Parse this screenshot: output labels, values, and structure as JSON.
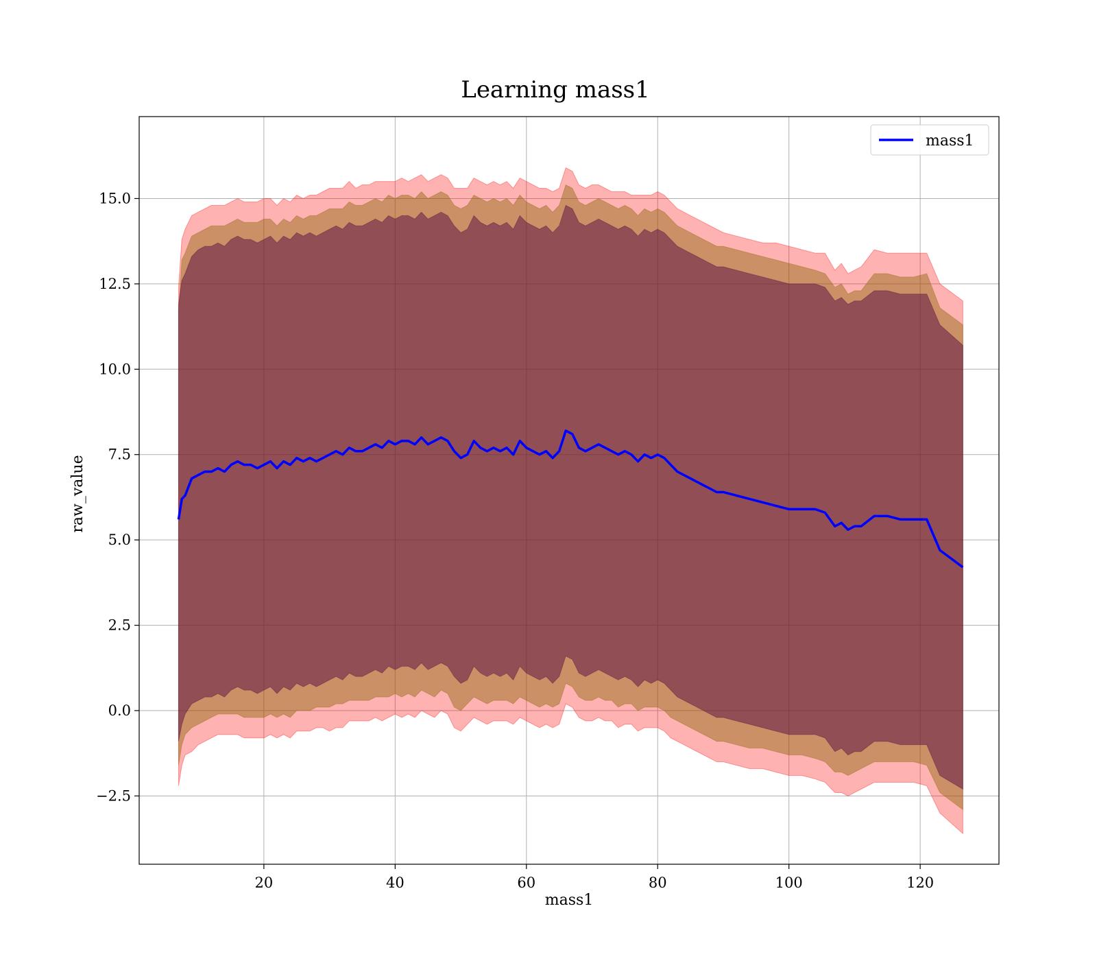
{
  "chart_data": {
    "type": "line",
    "title": "Learning mass1",
    "xlabel": "mass1",
    "ylabel": "raw_value",
    "xlim": [
      1,
      132
    ],
    "ylim": [
      -4.5,
      17.4
    ],
    "grid": true,
    "legend_position": "top-right",
    "xticks": [
      20,
      40,
      60,
      80,
      100,
      120
    ],
    "xtick_labels": [
      "20",
      "40",
      "60",
      "80",
      "100",
      "120"
    ],
    "yticks": [
      -2.5,
      0.0,
      2.5,
      5.0,
      7.5,
      10.0,
      12.5,
      15.0
    ],
    "ytick_labels": [
      "−2.5",
      "0.0",
      "2.5",
      "5.0",
      "7.5",
      "10.0",
      "12.5",
      "15.0"
    ],
    "colors": {
      "line": "#0000ff",
      "outer_band": "#ff0000",
      "middle_band": "#8b6508",
      "inner_band": "#4b0040"
    },
    "series": [
      {
        "name": "mass1",
        "x": [
          7,
          7.5,
          8,
          9,
          10,
          11,
          12,
          13,
          14,
          15,
          16,
          17,
          18,
          19,
          20,
          21,
          22,
          23,
          24,
          25,
          26,
          27,
          28,
          29,
          30,
          31,
          32,
          33,
          34,
          35,
          36,
          37,
          38,
          39,
          40,
          41,
          42,
          43,
          44,
          45,
          46,
          47,
          48,
          49,
          50,
          51,
          52,
          53,
          54,
          55,
          56,
          57,
          58,
          59,
          60,
          61,
          62,
          63,
          64,
          65,
          66,
          67,
          68,
          69,
          70,
          71,
          72,
          73,
          74,
          75,
          76,
          77,
          78,
          79,
          80,
          81,
          82,
          83,
          84,
          85,
          86,
          87,
          88,
          89,
          90,
          92,
          94,
          96,
          98,
          100,
          102,
          104,
          105.5,
          107,
          108,
          109,
          110,
          111,
          113,
          115,
          117,
          119,
          121,
          123,
          126.5
        ],
        "values": [
          5.6,
          6.2,
          6.3,
          6.8,
          6.9,
          7.0,
          7.0,
          7.1,
          7.0,
          7.2,
          7.3,
          7.2,
          7.2,
          7.1,
          7.2,
          7.3,
          7.1,
          7.3,
          7.2,
          7.4,
          7.3,
          7.4,
          7.3,
          7.4,
          7.5,
          7.6,
          7.5,
          7.7,
          7.6,
          7.6,
          7.7,
          7.8,
          7.7,
          7.9,
          7.8,
          7.9,
          7.9,
          7.8,
          8.0,
          7.8,
          7.9,
          8.0,
          7.9,
          7.6,
          7.4,
          7.5,
          7.9,
          7.7,
          7.6,
          7.7,
          7.6,
          7.7,
          7.5,
          7.9,
          7.7,
          7.6,
          7.5,
          7.6,
          7.4,
          7.6,
          8.2,
          8.1,
          7.7,
          7.6,
          7.7,
          7.8,
          7.7,
          7.6,
          7.5,
          7.6,
          7.5,
          7.3,
          7.5,
          7.4,
          7.5,
          7.4,
          7.2,
          7.0,
          6.9,
          6.8,
          6.7,
          6.6,
          6.5,
          6.4,
          6.4,
          6.3,
          6.2,
          6.1,
          6.0,
          5.9,
          5.9,
          5.9,
          5.8,
          5.4,
          5.5,
          5.3,
          5.4,
          5.4,
          5.7,
          5.7,
          5.6,
          5.6,
          5.6,
          4.7,
          4.2
        ]
      }
    ],
    "bands": [
      {
        "layer": "outer",
        "lower": [
          -2.2,
          -1.6,
          -1.3,
          -1.2,
          -1.0,
          -0.9,
          -0.8,
          -0.7,
          -0.7,
          -0.7,
          -0.7,
          -0.8,
          -0.8,
          -0.8,
          -0.8,
          -0.7,
          -0.8,
          -0.7,
          -0.8,
          -0.6,
          -0.6,
          -0.6,
          -0.5,
          -0.5,
          -0.6,
          -0.5,
          -0.5,
          -0.3,
          -0.3,
          -0.3,
          -0.3,
          -0.2,
          -0.3,
          -0.2,
          -0.1,
          -0.2,
          -0.1,
          -0.2,
          0.0,
          -0.1,
          -0.2,
          0.0,
          -0.1,
          -0.5,
          -0.6,
          -0.4,
          -0.2,
          -0.3,
          -0.4,
          -0.3,
          -0.3,
          -0.3,
          -0.4,
          -0.2,
          -0.3,
          -0.4,
          -0.5,
          -0.4,
          -0.5,
          -0.4,
          0.2,
          0.1,
          -0.2,
          -0.3,
          -0.3,
          -0.2,
          -0.3,
          -0.3,
          -0.5,
          -0.4,
          -0.4,
          -0.6,
          -0.5,
          -0.5,
          -0.5,
          -0.6,
          -0.8,
          -0.9,
          -1.0,
          -1.1,
          -1.2,
          -1.3,
          -1.4,
          -1.5,
          -1.5,
          -1.6,
          -1.7,
          -1.7,
          -1.8,
          -1.9,
          -1.9,
          -2.0,
          -2.1,
          -2.4,
          -2.4,
          -2.5,
          -2.4,
          -2.3,
          -2.1,
          -2.1,
          -2.1,
          -2.1,
          -2.2,
          -3.0,
          -3.6
        ],
        "upper": [
          12.4,
          13.8,
          14.1,
          14.5,
          14.6,
          14.7,
          14.8,
          14.8,
          14.8,
          14.9,
          15.0,
          14.9,
          14.9,
          14.9,
          15.0,
          15.0,
          14.8,
          15.0,
          14.9,
          15.1,
          15.0,
          15.1,
          15.1,
          15.2,
          15.3,
          15.3,
          15.3,
          15.5,
          15.3,
          15.4,
          15.4,
          15.5,
          15.5,
          15.5,
          15.5,
          15.6,
          15.5,
          15.6,
          15.7,
          15.5,
          15.6,
          15.7,
          15.6,
          15.3,
          15.3,
          15.3,
          15.6,
          15.5,
          15.4,
          15.5,
          15.4,
          15.5,
          15.3,
          15.6,
          15.5,
          15.4,
          15.3,
          15.3,
          15.2,
          15.3,
          15.9,
          15.8,
          15.4,
          15.3,
          15.4,
          15.4,
          15.3,
          15.2,
          15.2,
          15.2,
          15.1,
          15.1,
          15.1,
          15.1,
          15.2,
          15.1,
          14.9,
          14.7,
          14.6,
          14.5,
          14.4,
          14.3,
          14.2,
          14.1,
          14.0,
          13.9,
          13.8,
          13.7,
          13.7,
          13.6,
          13.5,
          13.4,
          13.4,
          12.9,
          13.1,
          12.8,
          12.9,
          13.0,
          13.5,
          13.4,
          13.4,
          13.4,
          13.4,
          12.5,
          12.0
        ]
      },
      {
        "layer": "middle",
        "lower": [
          -1.6,
          -1.0,
          -0.7,
          -0.5,
          -0.4,
          -0.3,
          -0.2,
          -0.1,
          -0.1,
          -0.1,
          -0.1,
          -0.2,
          -0.2,
          -0.2,
          -0.2,
          -0.1,
          -0.2,
          -0.1,
          -0.2,
          0.0,
          0.0,
          0.0,
          0.1,
          0.1,
          0.1,
          0.2,
          0.2,
          0.3,
          0.3,
          0.3,
          0.3,
          0.4,
          0.4,
          0.4,
          0.5,
          0.4,
          0.5,
          0.4,
          0.6,
          0.5,
          0.4,
          0.6,
          0.5,
          0.1,
          0.0,
          0.2,
          0.4,
          0.3,
          0.2,
          0.3,
          0.3,
          0.3,
          0.2,
          0.4,
          0.3,
          0.2,
          0.1,
          0.2,
          0.1,
          0.2,
          0.8,
          0.7,
          0.4,
          0.3,
          0.3,
          0.4,
          0.3,
          0.3,
          0.1,
          0.2,
          0.2,
          0.0,
          0.1,
          0.1,
          0.1,
          0.0,
          -0.2,
          -0.3,
          -0.4,
          -0.5,
          -0.6,
          -0.7,
          -0.8,
          -0.9,
          -0.9,
          -1.0,
          -1.1,
          -1.1,
          -1.2,
          -1.3,
          -1.3,
          -1.4,
          -1.5,
          -1.8,
          -1.8,
          -1.9,
          -1.8,
          -1.7,
          -1.5,
          -1.5,
          -1.5,
          -1.5,
          -1.6,
          -2.4,
          -2.9
        ],
        "upper": [
          11.7,
          13.2,
          13.4,
          13.9,
          14.0,
          14.1,
          14.2,
          14.2,
          14.2,
          14.3,
          14.4,
          14.3,
          14.3,
          14.3,
          14.4,
          14.4,
          14.2,
          14.4,
          14.3,
          14.5,
          14.4,
          14.5,
          14.5,
          14.6,
          14.7,
          14.7,
          14.7,
          14.9,
          14.8,
          14.8,
          14.9,
          15.0,
          14.9,
          15.1,
          15.0,
          15.1,
          15.1,
          15.0,
          15.2,
          15.0,
          15.1,
          15.2,
          15.1,
          14.8,
          14.7,
          14.8,
          15.1,
          15.0,
          14.9,
          15.0,
          14.9,
          15.0,
          14.8,
          15.1,
          14.9,
          14.8,
          14.7,
          14.8,
          14.6,
          14.8,
          15.4,
          15.3,
          14.9,
          14.8,
          14.9,
          15.0,
          14.9,
          14.8,
          14.7,
          14.8,
          14.7,
          14.5,
          14.7,
          14.6,
          14.7,
          14.6,
          14.4,
          14.2,
          14.1,
          14.0,
          13.9,
          13.8,
          13.7,
          13.6,
          13.6,
          13.5,
          13.4,
          13.3,
          13.2,
          13.1,
          13.0,
          12.9,
          12.8,
          12.4,
          12.5,
          12.2,
          12.3,
          12.3,
          12.8,
          12.8,
          12.7,
          12.7,
          12.8,
          11.8,
          11.3
        ]
      },
      {
        "layer": "inner",
        "lower": [
          -0.9,
          -0.4,
          -0.1,
          0.2,
          0.3,
          0.4,
          0.4,
          0.5,
          0.4,
          0.6,
          0.7,
          0.6,
          0.6,
          0.5,
          0.6,
          0.7,
          0.5,
          0.7,
          0.6,
          0.8,
          0.7,
          0.8,
          0.7,
          0.8,
          0.9,
          1.0,
          0.9,
          1.1,
          1.0,
          1.0,
          1.1,
          1.2,
          1.1,
          1.3,
          1.2,
          1.3,
          1.3,
          1.2,
          1.4,
          1.2,
          1.3,
          1.4,
          1.3,
          1.0,
          0.8,
          0.9,
          1.3,
          1.1,
          1.0,
          1.1,
          1.0,
          1.1,
          0.9,
          1.3,
          1.1,
          1.0,
          0.9,
          1.0,
          0.8,
          1.0,
          1.6,
          1.5,
          1.1,
          1.0,
          1.1,
          1.2,
          1.1,
          1.0,
          0.9,
          1.0,
          0.9,
          0.7,
          0.9,
          0.8,
          0.9,
          0.8,
          0.6,
          0.4,
          0.3,
          0.2,
          0.1,
          0.0,
          -0.1,
          -0.2,
          -0.2,
          -0.3,
          -0.4,
          -0.5,
          -0.6,
          -0.7,
          -0.7,
          -0.7,
          -0.8,
          -1.2,
          -1.1,
          -1.3,
          -1.2,
          -1.2,
          -0.9,
          -0.9,
          -1.0,
          -1.0,
          -1.0,
          -1.9,
          -2.3
        ],
        "upper": [
          11.9,
          12.6,
          12.8,
          13.3,
          13.5,
          13.6,
          13.6,
          13.7,
          13.6,
          13.8,
          13.9,
          13.8,
          13.8,
          13.7,
          13.8,
          13.9,
          13.7,
          13.9,
          13.8,
          14.0,
          13.9,
          14.0,
          13.9,
          14.0,
          14.1,
          14.2,
          14.1,
          14.3,
          14.2,
          14.2,
          14.3,
          14.4,
          14.3,
          14.5,
          14.4,
          14.5,
          14.5,
          14.4,
          14.6,
          14.4,
          14.5,
          14.6,
          14.5,
          14.2,
          14.0,
          14.1,
          14.5,
          14.3,
          14.2,
          14.3,
          14.2,
          14.3,
          14.1,
          14.5,
          14.3,
          14.2,
          14.1,
          14.2,
          14.0,
          14.2,
          14.8,
          14.7,
          14.3,
          14.2,
          14.3,
          14.4,
          14.3,
          14.2,
          14.1,
          14.2,
          14.1,
          13.9,
          14.1,
          14.0,
          14.1,
          14.0,
          13.8,
          13.6,
          13.5,
          13.4,
          13.3,
          13.2,
          13.1,
          13.0,
          13.0,
          12.9,
          12.8,
          12.7,
          12.6,
          12.5,
          12.5,
          12.5,
          12.4,
          12.0,
          12.1,
          11.9,
          12.0,
          12.0,
          12.3,
          12.3,
          12.2,
          12.2,
          12.2,
          11.3,
          10.7
        ]
      }
    ],
    "legend": [
      {
        "label": "mass1",
        "color": "#0000ff"
      }
    ]
  }
}
